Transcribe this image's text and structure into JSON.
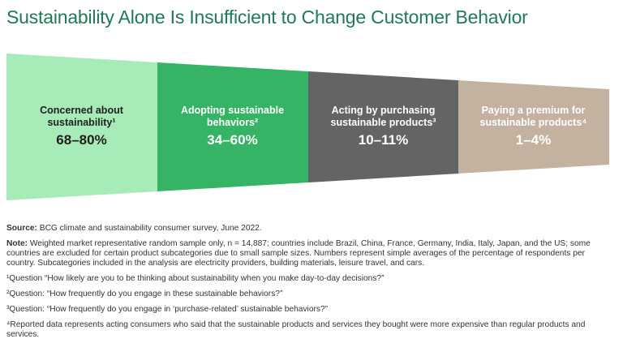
{
  "title": "Sustainability Alone Is Insufficient to Change Customer Behavior",
  "stages": [
    {
      "label_line1": "Concerned about",
      "label_line2": "sustainability¹",
      "value": "68–80%",
      "fill": "#a6ebb8",
      "text_color": "#1f1f1f"
    },
    {
      "label_line1": "Adopting sustainable",
      "label_line2": "behaviors²",
      "value": "34–60%",
      "fill": "#34b464",
      "text_color": "#ffffff"
    },
    {
      "label_line1": "Acting by purchasing",
      "label_line2": "sustainable products³",
      "value": "10–11%",
      "fill": "#646464",
      "text_color": "#ffffff"
    },
    {
      "label_line1": "Paying a premium for",
      "label_line2": "sustainable products⁴",
      "value": "1–4%",
      "fill": "#c3b29f",
      "text_color": "#ffffff"
    }
  ],
  "source": {
    "label": "Source:",
    "text": " BCG climate and sustainability consumer survey, June 2022."
  },
  "note": {
    "label": "Note:",
    "text": " Weighted market representative random sample only, n = 14,887; countries include Brazil, China, France, Germany, India, Italy, Japan, and the US; some countries are excluded for certain product subcategories due to small sample sizes. Numbers represent simple averages of the percentage of respondents per country. Subcategories included in the analysis are electricity providers, building materials, leisure travel, and cars."
  },
  "footnotes": [
    "¹Question “How likely are you to be thinking about sustainability when you make day-to-day decisions?”",
    "²Question: “How frequently do you engage in these sustainable behaviors?”",
    "³Question: “How frequently do you engage in ‘purchase-related’ sustainable behaviors?”",
    "⁴Reported data represents acting consumers who said that the sustainable products and services they bought were more expensive than regular products and services."
  ]
}
